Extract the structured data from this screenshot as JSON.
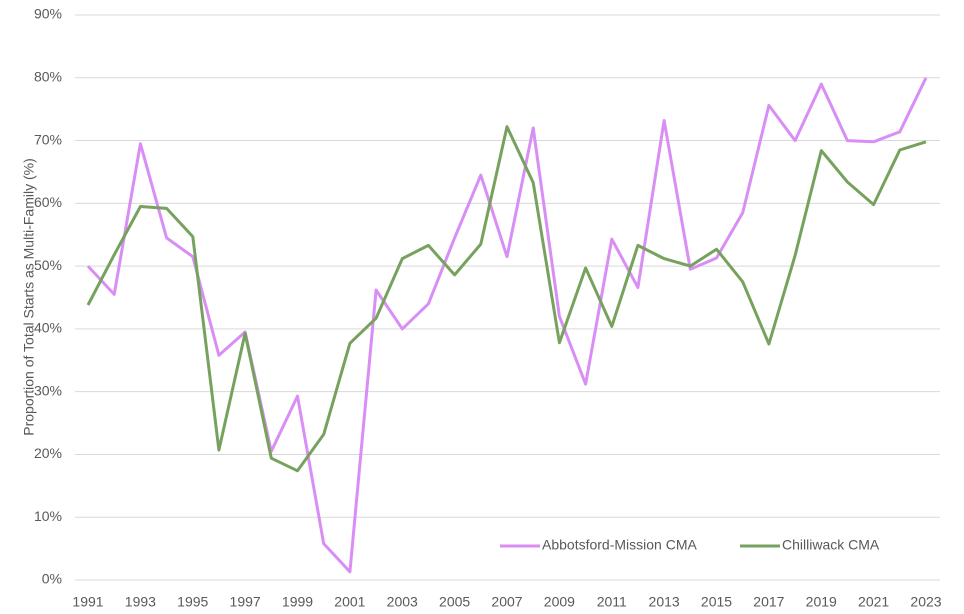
{
  "chart_data": {
    "type": "line",
    "y_label": "Proportion of Total Starts as Multi-Family (%)",
    "x": [
      1991,
      1992,
      1993,
      1994,
      1995,
      1996,
      1997,
      1998,
      1999,
      2000,
      2001,
      2002,
      2003,
      2004,
      2005,
      2006,
      2007,
      2008,
      2009,
      2010,
      2011,
      2012,
      2013,
      2014,
      2015,
      2016,
      2017,
      2018,
      2019,
      2020,
      2021,
      2022,
      2023
    ],
    "xlim": [
      1991,
      2023
    ],
    "xticks": [
      1991,
      1993,
      1995,
      1997,
      1999,
      2001,
      2003,
      2005,
      2007,
      2009,
      2011,
      2013,
      2015,
      2017,
      2019,
      2021,
      2023
    ],
    "ylim": [
      0,
      90
    ],
    "yticks": [
      {
        "value": 0,
        "label": "0%"
      },
      {
        "value": 10,
        "label": "10%"
      },
      {
        "value": 20,
        "label": "20%"
      },
      {
        "value": 30,
        "label": "30%"
      },
      {
        "value": 40,
        "label": "40%"
      },
      {
        "value": 50,
        "label": "50%"
      },
      {
        "value": 60,
        "label": "60%"
      },
      {
        "value": 70,
        "label": "70%"
      },
      {
        "value": 80,
        "label": "80%"
      },
      {
        "value": 90,
        "label": "90%"
      }
    ],
    "grid": true,
    "legend": "bottom-right",
    "series": [
      {
        "name": "Abbotsford-Mission CMA",
        "color": "#d98ef5",
        "values": [
          50,
          45.5,
          69.5,
          54.5,
          51.5,
          35.8,
          39.5,
          20.5,
          29.3,
          5.8,
          1.3,
          46.2,
          40,
          44,
          54.5,
          64.5,
          51.5,
          72,
          42,
          31.2,
          54.3,
          46.6,
          73.2,
          49.5,
          51.3,
          58.5,
          75.6,
          70,
          79,
          70,
          69.8,
          71.4,
          80
        ]
      },
      {
        "name": "Chilliwack CMA",
        "color": "#76a25e",
        "values": [
          43.8,
          51.8,
          59.5,
          59.2,
          54.7,
          20.7,
          39.3,
          19.4,
          17.4,
          23.2,
          37.7,
          41.7,
          51.2,
          53.3,
          48.6,
          53.5,
          72.2,
          63.3,
          37.8,
          49.7,
          40.4,
          53.3,
          51.2,
          50,
          52.7,
          47.5,
          37.6,
          51.7,
          68.4,
          63.4,
          59.8,
          68.5,
          69.8
        ]
      }
    ]
  }
}
